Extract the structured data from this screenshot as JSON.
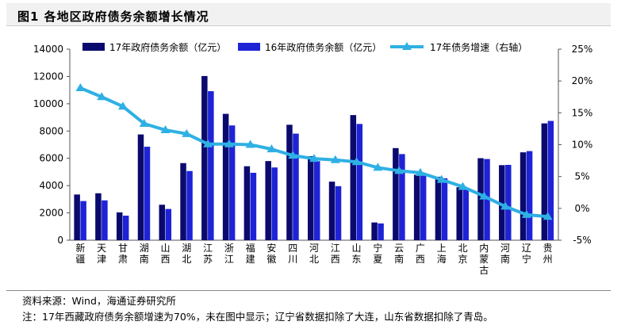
{
  "title": "图1  各地区政府债务余额增长情况",
  "chart_data": {
    "type": "bar",
    "title": "图1  各地区政府债务余额增长情况",
    "categories": [
      "新疆",
      "天津",
      "甘肃",
      "湖南",
      "山西",
      "湖北",
      "江苏",
      "浙江",
      "福建",
      "安徽",
      "四川",
      "河北",
      "江西",
      "山东",
      "宁夏",
      "云南",
      "广西",
      "上海",
      "北京",
      "内蒙古",
      "河南",
      "辽宁",
      "贵州"
    ],
    "series": [
      {
        "name": "17年政府债务余额（亿元）",
        "axis": "left",
        "type": "bar",
        "color": "#0a0a6e",
        "values": [
          3350,
          3440,
          2040,
          7750,
          2600,
          5650,
          12030,
          9260,
          5420,
          5800,
          8460,
          6160,
          4290,
          9170,
          1300,
          6750,
          4800,
          4650,
          3880,
          6010,
          5500,
          6440,
          8560
        ]
      },
      {
        "name": "16年政府债务余额（亿元）",
        "axis": "left",
        "type": "bar",
        "color": "#1f23d6",
        "values": [
          2870,
          2920,
          1800,
          6850,
          2290,
          5070,
          10920,
          8410,
          4940,
          5330,
          7810,
          5800,
          3960,
          8520,
          1230,
          6310,
          4810,
          4540,
          3730,
          5950,
          5520,
          6530,
          8740
        ]
      },
      {
        "name": "17年债务增速（右轴）",
        "axis": "right",
        "type": "line",
        "color": "#2fb0e4",
        "values": [
          18.9,
          17.5,
          16.0,
          13.3,
          12.3,
          11.7,
          10.1,
          10.1,
          10.0,
          9.3,
          8.3,
          7.8,
          7.6,
          7.3,
          6.4,
          5.9,
          5.6,
          4.5,
          3.4,
          1.9,
          0.3,
          -1.0,
          -1.3
        ]
      }
    ],
    "left_axis": {
      "min": 0,
      "max": 14000,
      "ticks": [
        0,
        2000,
        4000,
        6000,
        8000,
        10000,
        12000,
        14000
      ]
    },
    "right_axis": {
      "min": -5,
      "max": 25,
      "ticks": [
        -5,
        0,
        5,
        10,
        15,
        20,
        25
      ],
      "tick_labels": [
        "-5%",
        "0%",
        "5%",
        "10%",
        "15%",
        "20%",
        "25%"
      ]
    },
    "legend": "top",
    "grid": false
  },
  "notes": {
    "source": "资料来源：Wind，海通证券研究所",
    "note": "注：17年西藏政府债务余额增速为70%，未在图中显示；辽宁省数据扣除了大连，山东省数据扣除了青岛。"
  }
}
